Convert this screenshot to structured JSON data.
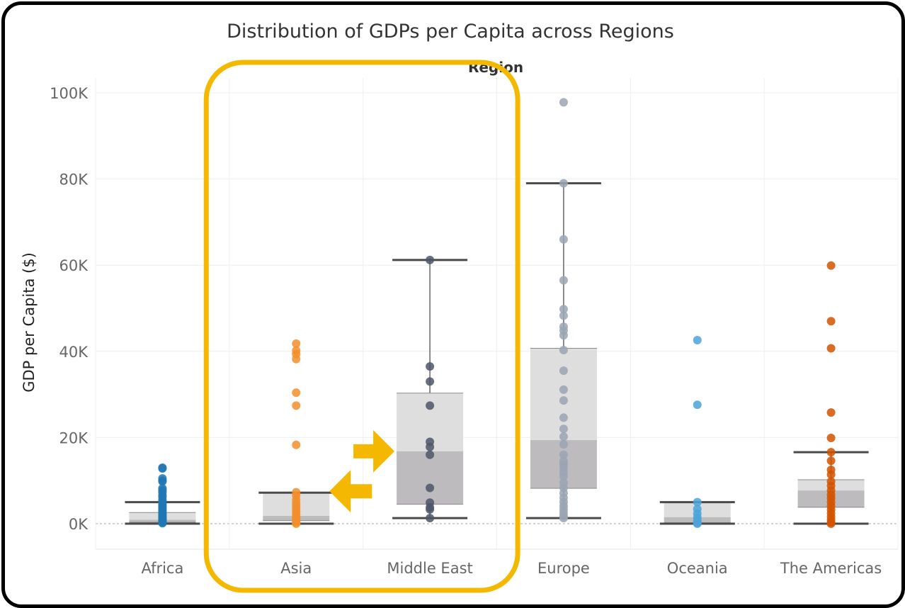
{
  "chart_data": {
    "type": "boxplot",
    "title": "Distribution of GDPs per Capita across Regions",
    "column_header": "Region",
    "ylabel": "GDP per Capita ($)",
    "ylim": [
      0,
      100000
    ],
    "yticks": [
      0,
      20000,
      40000,
      60000,
      80000,
      100000
    ],
    "ytick_labels": [
      "0K",
      "20K",
      "40K",
      "60K",
      "80K",
      "100K"
    ],
    "grid": true,
    "categories": [
      "Africa",
      "Asia",
      "Middle East",
      "Europe",
      "Oceania",
      "The Americas"
    ],
    "series": [
      {
        "category": "Africa",
        "color": "#1f77b4",
        "whisker_low": 0,
        "q1": 300,
        "median": 900,
        "q3": 2600,
        "whisker_high": 5000,
        "points": [
          13000,
          12800,
          10500,
          10000,
          9800,
          8200,
          7800,
          7300,
          6600,
          6200,
          5500,
          5000,
          4600,
          4200,
          3800,
          3500,
          3100,
          2700,
          2300,
          2000,
          1700,
          1400,
          1100,
          900,
          700,
          500,
          300,
          100
        ]
      },
      {
        "category": "Asia",
        "color": "#f28e2b",
        "whisker_low": 0,
        "q1": 700,
        "median": 1800,
        "q3": 7200,
        "whisker_high": 7200,
        "points": [
          41800,
          40200,
          39400,
          38200,
          30400,
          27400,
          18300,
          7300,
          6500,
          5500,
          4700,
          4000,
          3400,
          2800,
          2200,
          1600,
          1100,
          700,
          300,
          0
        ]
      },
      {
        "category": "Middle East",
        "color": "#4e5668",
        "whisker_low": 1300,
        "q1": 4500,
        "median": 16800,
        "q3": 30300,
        "whisker_high": 61200,
        "points": [
          61200,
          36500,
          33000,
          27400,
          19000,
          17800,
          16000,
          8300,
          4900,
          3800,
          3300,
          1300
        ]
      },
      {
        "category": "Europe",
        "color": "#9aa5b3",
        "whisker_low": 1300,
        "q1": 8200,
        "median": 19400,
        "q3": 40700,
        "whisker_high": 79000,
        "points": [
          97800,
          79000,
          66000,
          56500,
          49800,
          48300,
          45700,
          44800,
          43700,
          40300,
          35500,
          31100,
          28600,
          24600,
          22000,
          20200,
          18400,
          16000,
          14500,
          13800,
          13000,
          12000,
          11000,
          9500,
          8300,
          7100,
          6000,
          5000,
          4100,
          3300,
          2500,
          1800,
          1300
        ]
      },
      {
        "category": "Oceania",
        "color": "#4ba3d9",
        "whisker_low": 0,
        "q1": 200,
        "median": 1500,
        "q3": 5000,
        "whisker_high": 5000,
        "points": [
          42600,
          27600,
          5000,
          3400,
          2300,
          1400,
          700,
          200,
          0
        ]
      },
      {
        "category": "The Americas",
        "color": "#d35400",
        "whisker_low": 0,
        "q1": 3800,
        "median": 7700,
        "q3": 10200,
        "whisker_high": 16600,
        "points": [
          59900,
          47000,
          40700,
          25800,
          19900,
          16600,
          14600,
          12500,
          11400,
          9800,
          8800,
          7700,
          6700,
          5900,
          5000,
          4100,
          3200,
          2400,
          1600,
          900,
          300,
          0
        ]
      }
    ]
  },
  "annotations": {
    "highlight_color": "#f5b800",
    "arrow_color": "#f5b800",
    "highlight_categories": [
      "Asia",
      "Middle East"
    ]
  }
}
